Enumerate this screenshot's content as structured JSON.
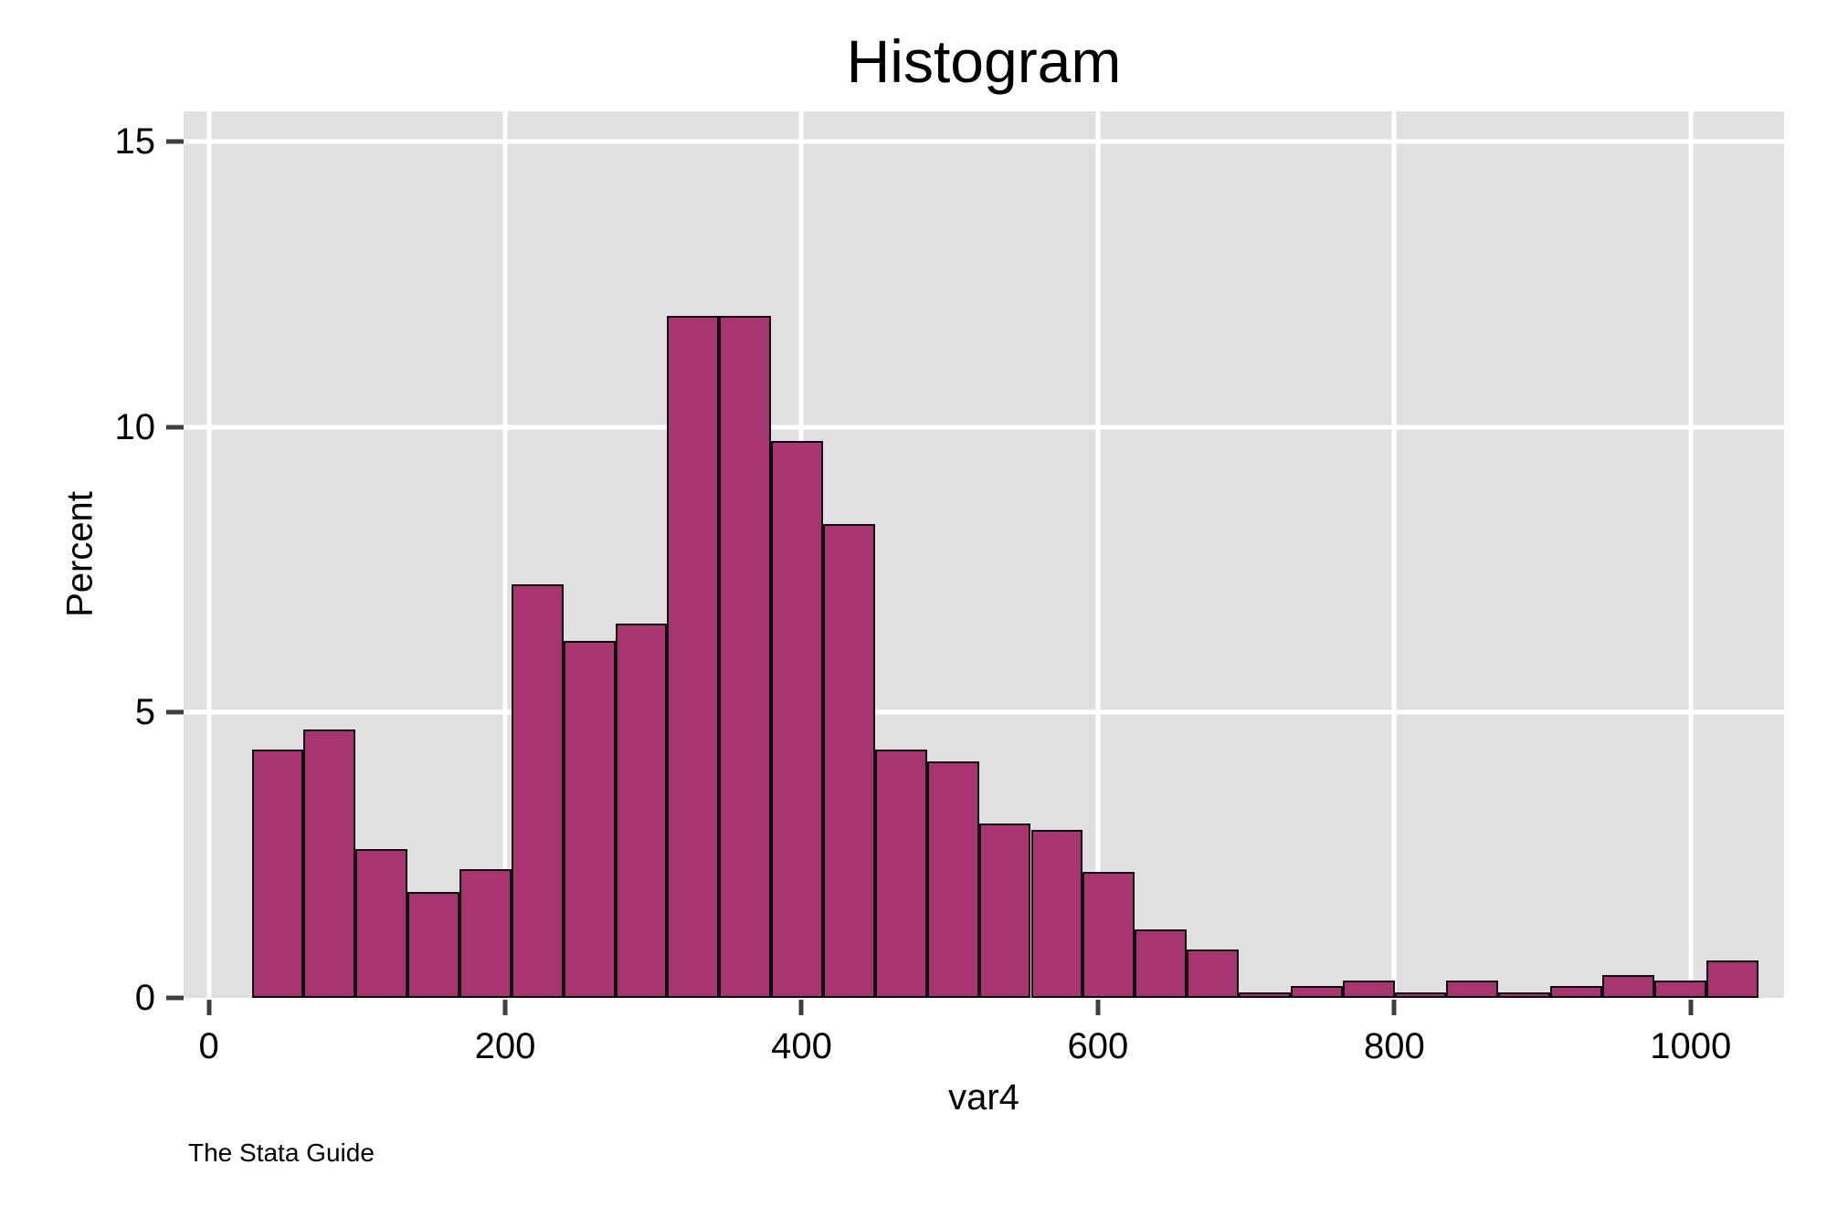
{
  "page": {
    "background": "#ffffff"
  },
  "chart_data": {
    "type": "bar",
    "subtype": "histogram",
    "title": "Histogram",
    "xlabel": "var4",
    "ylabel": "Percent",
    "caption": "The Stata Guide",
    "legend": "none",
    "grid": true,
    "x_ticks": [
      0,
      200,
      400,
      600,
      800,
      1000
    ],
    "y_ticks": [
      0,
      5,
      10,
      15
    ],
    "xlim": [
      -17,
      1063
    ],
    "ylim": [
      0,
      15.53
    ],
    "bin_start": 29,
    "bin_width": 35.05,
    "values_percent": [
      4.35,
      4.7,
      2.6,
      1.85,
      2.25,
      7.25,
      6.25,
      6.55,
      11.95,
      11.95,
      9.75,
      8.3,
      4.35,
      4.15,
      3.05,
      2.95,
      2.2,
      1.2,
      0.85,
      0.1,
      0.2,
      0.3,
      0.1,
      0.3,
      0.1,
      0.2,
      0.4,
      0.3,
      0.65
    ],
    "colors": {
      "bar_fill": "#a83470",
      "bar_border": "#0c0c0c",
      "plot_bg": "#e0e0e0",
      "grid_line": "#ffffff",
      "tick": "#404040",
      "text": "#000000"
    }
  }
}
